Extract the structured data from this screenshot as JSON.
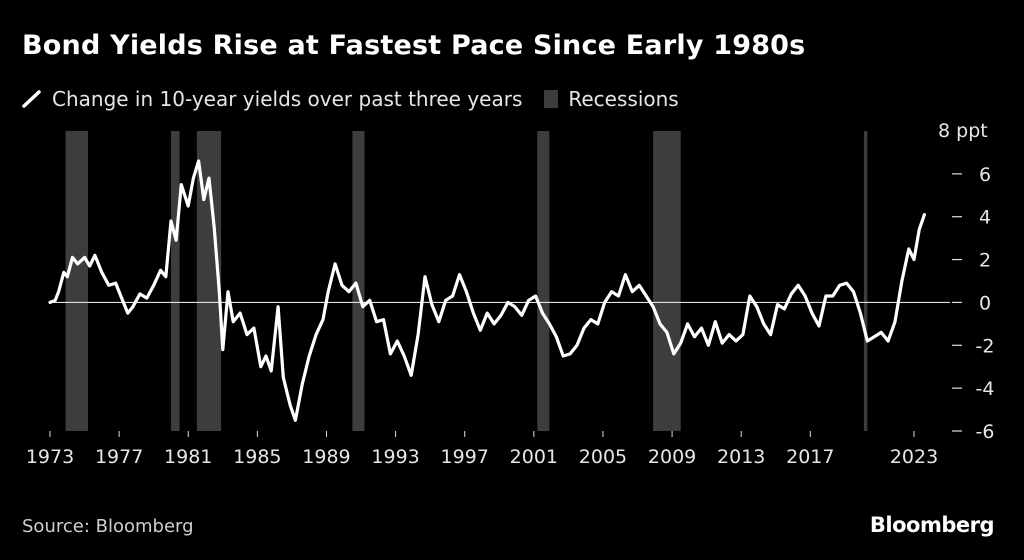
{
  "header": {
    "title": "Bond Yields Rise at Fastest Pace Since Early 1980s"
  },
  "legend": {
    "line_label": "Change in 10-year yields over past three years",
    "recession_label": "Recessions"
  },
  "footer": {
    "source": "Source: Bloomberg",
    "brand": "Bloomberg"
  },
  "colors": {
    "background": "#000000",
    "line": "#ffffff",
    "recession": "#3b3d3f",
    "axis_text": "#e6e6e6"
  },
  "chart_data": {
    "type": "line",
    "title": "Bond Yields Rise at Fastest Pace Since Early 1980s",
    "ylabel": "ppt",
    "ylim": [
      -6,
      8
    ],
    "xlim": [
      1972.4,
      2025.2
    ],
    "y_ticks": [
      8,
      6,
      4,
      2,
      0,
      -2,
      -4,
      -6
    ],
    "y_tick_labels": [
      "8 ppt",
      "6",
      "4",
      "2",
      "0",
      "-2",
      "-4",
      "-6"
    ],
    "x_ticks": [
      1973,
      1977,
      1981,
      1985,
      1989,
      1993,
      1997,
      2001,
      2005,
      2009,
      2013,
      2017,
      2023
    ],
    "x_tick_labels": [
      "1973",
      "1977",
      "1981",
      "1985",
      "1989",
      "1993",
      "1997",
      "2001",
      "2005",
      "2009",
      "2013",
      "2017",
      "2023"
    ],
    "grid": false,
    "zero_line": true,
    "legend_position": "top-left",
    "recessions": [
      [
        1973.9,
        1975.2
      ],
      [
        1980.0,
        1980.5
      ],
      [
        1981.5,
        1982.9
      ],
      [
        1990.5,
        1991.2
      ],
      [
        2001.2,
        2001.9
      ],
      [
        2007.9,
        2009.5
      ],
      [
        2020.1,
        2020.3
      ]
    ],
    "series": [
      {
        "name": "Change in 10-year yields over past three years",
        "x": [
          1973.0,
          1973.3,
          1973.5,
          1973.8,
          1974.0,
          1974.3,
          1974.6,
          1975.0,
          1975.3,
          1975.6,
          1976.0,
          1976.4,
          1976.8,
          1977.1,
          1977.5,
          1977.8,
          1978.2,
          1978.6,
          1979.0,
          1979.4,
          1979.7,
          1980.0,
          1980.3,
          1980.6,
          1981.0,
          1981.3,
          1981.6,
          1981.9,
          1982.2,
          1982.5,
          1982.8,
          1983.0,
          1983.3,
          1983.6,
          1984.0,
          1984.4,
          1984.8,
          1985.2,
          1985.5,
          1985.8,
          1986.2,
          1986.5,
          1986.9,
          1987.2,
          1987.6,
          1988.0,
          1988.4,
          1988.8,
          1989.1,
          1989.5,
          1989.9,
          1990.3,
          1990.7,
          1991.1,
          1991.5,
          1991.9,
          1992.3,
          1992.7,
          1993.1,
          1993.5,
          1993.9,
          1994.3,
          1994.7,
          1995.1,
          1995.5,
          1995.9,
          1996.3,
          1996.7,
          1997.1,
          1997.5,
          1997.9,
          1998.3,
          1998.7,
          1999.1,
          1999.5,
          1999.9,
          2000.3,
          2000.7,
          2001.1,
          2001.5,
          2001.9,
          2002.3,
          2002.7,
          2003.1,
          2003.5,
          2003.9,
          2004.3,
          2004.7,
          2005.1,
          2005.5,
          2005.9,
          2006.3,
          2006.7,
          2007.1,
          2007.5,
          2007.9,
          2008.3,
          2008.7,
          2009.1,
          2009.5,
          2009.9,
          2010.3,
          2010.7,
          2011.1,
          2011.5,
          2011.9,
          2012.3,
          2012.7,
          2013.1,
          2013.5,
          2013.9,
          2014.3,
          2014.7,
          2015.1,
          2015.5,
          2015.9,
          2016.3,
          2016.7,
          2017.1,
          2017.5,
          2017.9,
          2018.3,
          2018.7,
          2019.1,
          2019.5,
          2019.9,
          2020.3,
          2020.7,
          2021.1,
          2021.5,
          2021.9,
          2022.3,
          2022.7,
          2023.0,
          2023.3,
          2023.6
        ],
        "values": [
          0.0,
          0.1,
          0.5,
          1.4,
          1.2,
          2.1,
          1.8,
          2.1,
          1.7,
          2.2,
          1.4,
          0.8,
          0.9,
          0.3,
          -0.5,
          -0.2,
          0.4,
          0.2,
          0.8,
          1.5,
          1.2,
          3.8,
          2.9,
          5.5,
          4.5,
          5.8,
          6.6,
          4.8,
          5.8,
          3.5,
          0.5,
          -2.2,
          0.5,
          -0.9,
          -0.5,
          -1.5,
          -1.2,
          -3.0,
          -2.5,
          -3.2,
          -0.2,
          -3.5,
          -4.8,
          -5.5,
          -3.8,
          -2.5,
          -1.5,
          -0.8,
          0.5,
          1.8,
          0.8,
          0.5,
          0.9,
          -0.2,
          0.1,
          -0.9,
          -0.8,
          -2.4,
          -1.8,
          -2.5,
          -3.4,
          -1.5,
          1.2,
          -0.1,
          -0.9,
          0.1,
          0.3,
          1.3,
          0.5,
          -0.5,
          -1.3,
          -0.5,
          -1.0,
          -0.6,
          0.0,
          -0.2,
          -0.6,
          0.1,
          0.3,
          -0.5,
          -1.0,
          -1.6,
          -2.5,
          -2.4,
          -2.0,
          -1.2,
          -0.8,
          -1.0,
          0.0,
          0.5,
          0.3,
          1.3,
          0.5,
          0.8,
          0.3,
          -0.2,
          -1.0,
          -1.4,
          -2.4,
          -1.9,
          -1.0,
          -1.6,
          -1.2,
          -2.0,
          -0.9,
          -1.9,
          -1.5,
          -1.8,
          -1.5,
          0.3,
          -0.2,
          -1.0,
          -1.5,
          -0.1,
          -0.3,
          0.4,
          0.8,
          0.3,
          -0.5,
          -1.1,
          0.3,
          0.3,
          0.8,
          0.9,
          0.5,
          -0.5,
          -1.8,
          -1.6,
          -1.4,
          -1.8,
          -0.9,
          1.0,
          2.5,
          2.0,
          3.4,
          4.1
        ]
      }
    ]
  }
}
